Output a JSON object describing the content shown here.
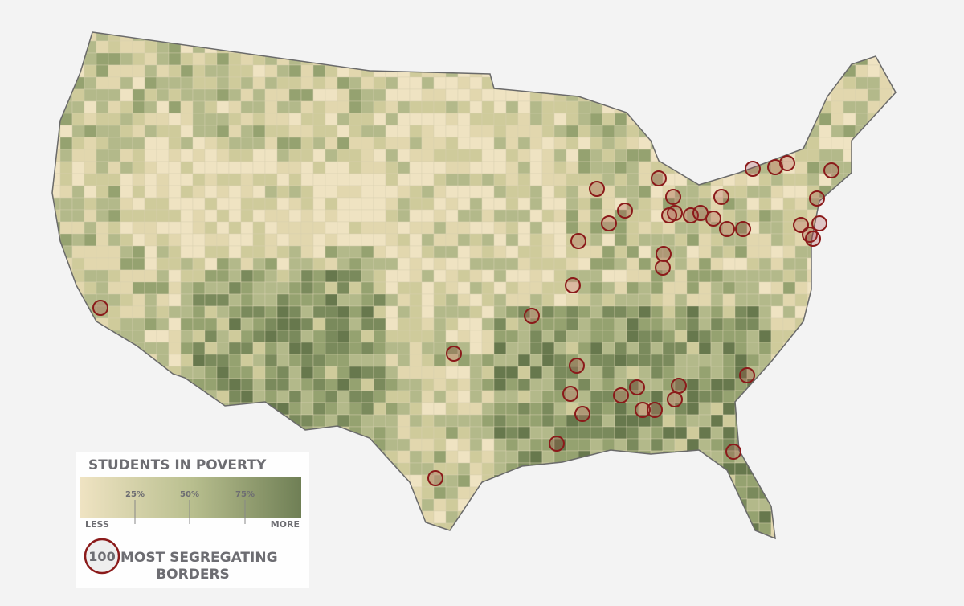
{
  "legend": {
    "title": "STUDENTS IN POVERTY",
    "ticks": [
      "25%",
      "50%",
      "75%"
    ],
    "low": "LESS",
    "high": "MORE",
    "badge": "100",
    "badge_text": "MOST SEGREGATING",
    "badge_text_2": "BORDERS"
  }
}
